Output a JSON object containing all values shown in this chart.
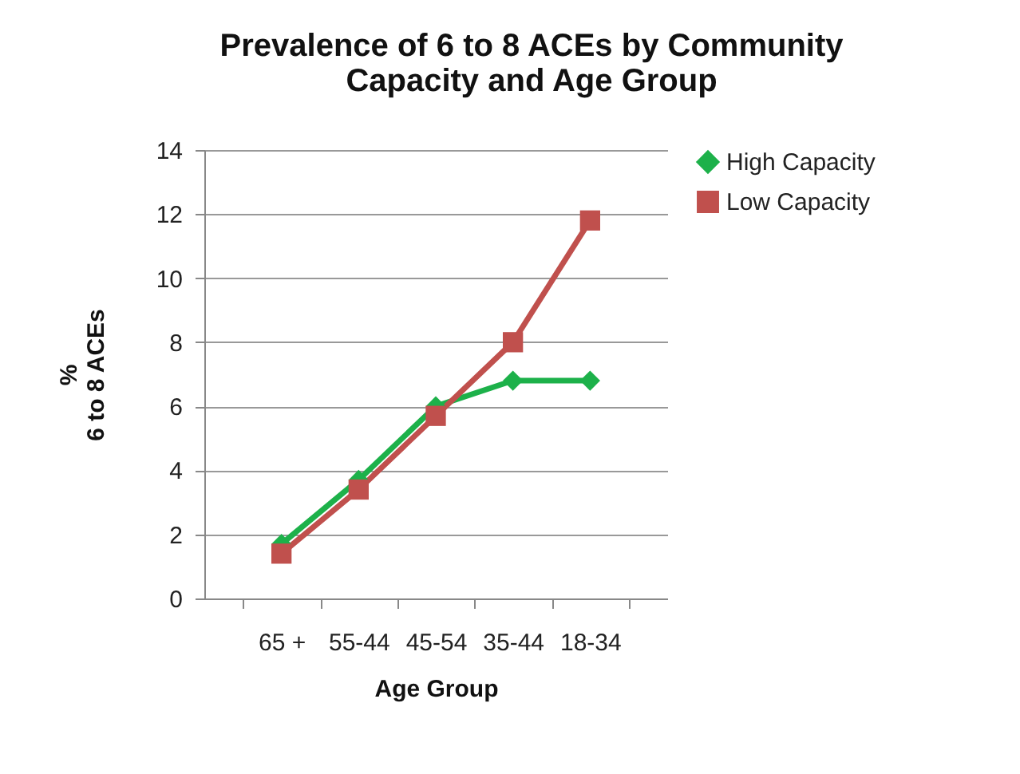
{
  "chart_data": {
    "type": "line",
    "title": "Prevalence of 6 to 8 ACEs by Community Capacity and Age Group",
    "xlabel": "Age Group",
    "ylabel": "%\n6 to 8  ACEs",
    "categories": [
      "65 +",
      "55-44",
      "45-54",
      "35-44",
      "18-34"
    ],
    "series": [
      {
        "name": "High Capacity",
        "color": "#1db14a",
        "marker": "diamond",
        "values": [
          1.7,
          3.7,
          6.0,
          6.8,
          6.8
        ]
      },
      {
        "name": "Low Capacity",
        "color": "#c0504d",
        "marker": "square",
        "values": [
          1.4,
          3.4,
          5.7,
          8.0,
          11.8
        ]
      }
    ],
    "ylim": [
      0,
      14
    ],
    "yticks": [
      0,
      2,
      4,
      6,
      8,
      10,
      12,
      14
    ],
    "grid": "y",
    "legend": "right"
  }
}
